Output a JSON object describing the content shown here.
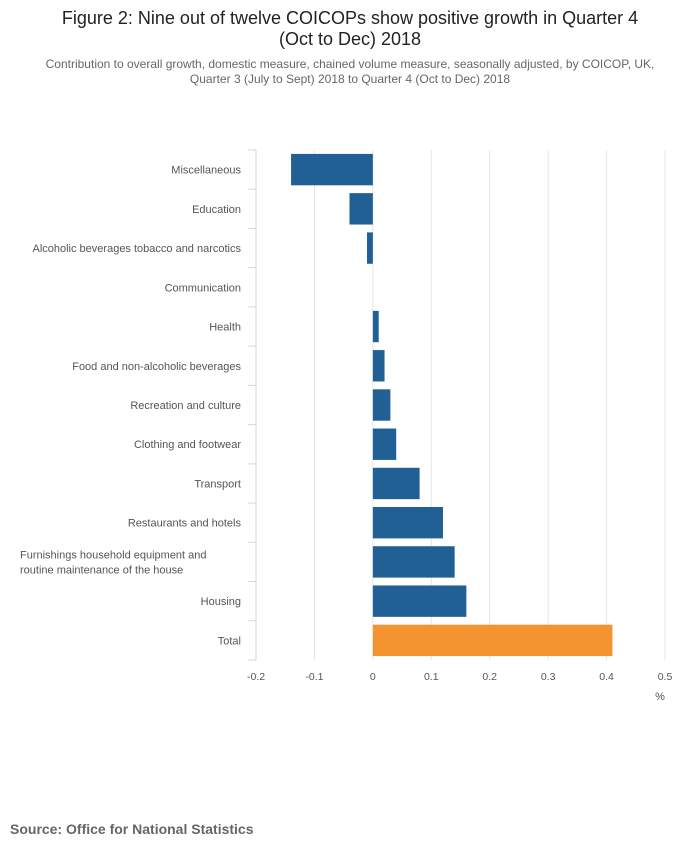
{
  "header": {
    "title_line1": "Figure 2: Nine out of twelve COICOPs show positive growth in Quarter 4",
    "title_line2": "(Oct to Dec) 2018",
    "subtitle_line1": "Contribution to overall growth, domestic measure, chained volume measure, seasonally adjusted, by COICOP, UK,",
    "subtitle_line2": "Quarter 3 (July to Sept) 2018 to Quarter 4 (Oct to Dec) 2018"
  },
  "chart_data": {
    "type": "bar",
    "orientation": "horizontal",
    "title": "Figure 2: Nine out of twelve COICOPs show positive growth in Quarter 4 (Oct to Dec) 2018",
    "subtitle": "Contribution to overall growth, domestic measure, chained volume measure, seasonally adjusted, by COICOP, UK, Quarter 3 (July to Sept) 2018 to Quarter 4 (Oct to Dec) 2018",
    "categories": [
      [
        "Miscellaneous"
      ],
      [
        "Education"
      ],
      [
        "Alcoholic beverages tobacco and narcotics"
      ],
      [
        "Communication"
      ],
      [
        "Health"
      ],
      [
        "Food and non-alcoholic beverages"
      ],
      [
        "Recreation and culture"
      ],
      [
        "Clothing and footwear"
      ],
      [
        "Transport"
      ],
      [
        "Restaurants and hotels"
      ],
      [
        "Furnishings household equipment and",
        "routine maintenance of the house"
      ],
      [
        "Housing"
      ],
      [
        "Total"
      ]
    ],
    "values": [
      -0.14,
      -0.04,
      -0.01,
      0.0,
      0.01,
      0.02,
      0.03,
      0.04,
      0.08,
      0.12,
      0.14,
      0.16,
      0.41
    ],
    "highlight_index": 12,
    "xlim": [
      -0.2,
      0.5
    ],
    "xticks": [
      -0.2,
      -0.1,
      0,
      0.1,
      0.2,
      0.3,
      0.4,
      0.5
    ],
    "xtick_labels": [
      "-0.2",
      "-0.1",
      "0",
      "0.1",
      "0.2",
      "0.3",
      "0.4",
      "0.5"
    ],
    "xlabel": "%",
    "ylabel": "",
    "grid": true,
    "colors": {
      "default": "#206095",
      "highlight": "#F39431",
      "grid": "#e5e5e5",
      "axis": "#c9dbe8"
    }
  },
  "footer": {
    "source": "Source: Office for National Statistics"
  }
}
